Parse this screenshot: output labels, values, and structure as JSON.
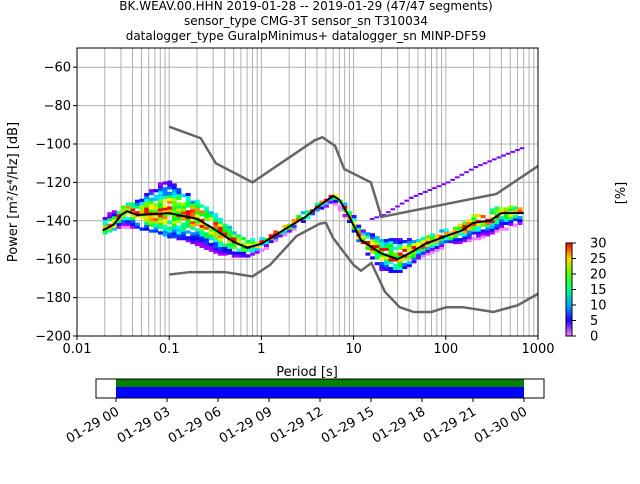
{
  "chart_data": {
    "type": "heatmap",
    "title_lines": [
      "BK.WEAV.00.HHN   2019-01-28 -- 2019-01-29  (47/47 segments)",
      "sensor_type CMG-3T sensor_sn T310034",
      "datalogger_type GuralpMinimus+ datalogger_sn MINP-DF59"
    ],
    "xlabel": "Period [s]",
    "ylabel": "Power [m²/s⁴/Hz] [dB]",
    "xscale": "log",
    "xlim": [
      0.01,
      1000
    ],
    "ylim": [
      -200,
      -50
    ],
    "x_ticks": [
      {
        "v": 0.01,
        "label": "0.01"
      },
      {
        "v": 0.1,
        "label": "0.1"
      },
      {
        "v": 1,
        "label": "1"
      },
      {
        "v": 10,
        "label": "10"
      },
      {
        "v": 100,
        "label": "100"
      },
      {
        "v": 1000,
        "label": "1000"
      }
    ],
    "y_ticks": [
      {
        "v": -60,
        "label": "−60"
      },
      {
        "v": -80,
        "label": "−80"
      },
      {
        "v": -100,
        "label": "−100"
      },
      {
        "v": -120,
        "label": "−120"
      },
      {
        "v": -140,
        "label": "−140"
      },
      {
        "v": -160,
        "label": "−160"
      },
      {
        "v": -180,
        "label": "−180"
      },
      {
        "v": -200,
        "label": "−200"
      }
    ],
    "grid": true,
    "noise_models": {
      "high": [
        [
          0.1,
          -91
        ],
        [
          0.22,
          -97
        ],
        [
          0.32,
          -110
        ],
        [
          0.8,
          -120
        ],
        [
          3.8,
          -98
        ],
        [
          4.6,
          -96.5
        ],
        [
          6.3,
          -101
        ],
        [
          7.9,
          -113
        ],
        [
          15.4,
          -120
        ],
        [
          20,
          -138
        ],
        [
          354,
          -126
        ],
        [
          1000,
          -111.5
        ]
      ],
      "low": [
        [
          0.1,
          -168
        ],
        [
          0.17,
          -166.7
        ],
        [
          0.4,
          -166.7
        ],
        [
          0.8,
          -169
        ],
        [
          1.24,
          -163
        ],
        [
          2.4,
          -148
        ],
        [
          4.3,
          -141.5
        ],
        [
          5,
          -141
        ],
        [
          6,
          -149
        ],
        [
          10,
          -163
        ],
        [
          12,
          -166
        ],
        [
          15.6,
          -162
        ],
        [
          21.9,
          -177
        ],
        [
          31.6,
          -185
        ],
        [
          45,
          -187.5
        ],
        [
          70,
          -187.5
        ],
        [
          101,
          -185
        ],
        [
          154,
          -185
        ],
        [
          328,
          -187.5
        ],
        [
          600,
          -184
        ],
        [
          1000,
          -178
        ]
      ]
    },
    "mean": [
      [
        0.019,
        -145
      ],
      [
        0.025,
        -142
      ],
      [
        0.03,
        -137
      ],
      [
        0.035,
        -135
      ],
      [
        0.045,
        -137
      ],
      [
        0.1,
        -136
      ],
      [
        0.2,
        -139
      ],
      [
        0.3,
        -144
      ],
      [
        0.5,
        -151
      ],
      [
        0.7,
        -154
      ],
      [
        1,
        -152
      ],
      [
        2,
        -143
      ],
      [
        3,
        -138
      ],
      [
        4,
        -133
      ],
      [
        6,
        -127
      ],
      [
        7,
        -129
      ],
      [
        9,
        -138
      ],
      [
        12,
        -150
      ],
      [
        20,
        -157
      ],
      [
        30,
        -160
      ],
      [
        40,
        -157
      ],
      [
        60,
        -152
      ],
      [
        100,
        -148
      ],
      [
        150,
        -145
      ],
      [
        200,
        -141
      ],
      [
        300,
        -140
      ],
      [
        400,
        -136
      ],
      [
        700,
        -136
      ]
    ],
    "pdf_band": [
      [
        0.019,
        -138,
        -147
      ],
      [
        0.03,
        -134,
        -143
      ],
      [
        0.05,
        -128,
        -144
      ],
      [
        0.08,
        -121,
        -146
      ],
      [
        0.1,
        -120,
        -148
      ],
      [
        0.15,
        -126,
        -150
      ],
      [
        0.2,
        -130,
        -152
      ],
      [
        0.3,
        -136,
        -156
      ],
      [
        0.5,
        -146,
        -159
      ],
      [
        0.7,
        -150,
        -159
      ],
      [
        1,
        -150,
        -156
      ],
      [
        2,
        -142,
        -146
      ],
      [
        4,
        -131,
        -135
      ],
      [
        6,
        -126,
        -130
      ],
      [
        9,
        -134,
        -141
      ],
      [
        12,
        -145,
        -153
      ],
      [
        20,
        -150,
        -165
      ],
      [
        30,
        -150,
        -167
      ],
      [
        50,
        -150,
        -160
      ],
      [
        100,
        -145,
        -153
      ],
      [
        200,
        -138,
        -150
      ],
      [
        400,
        -133,
        -145
      ],
      [
        700,
        -133,
        -141
      ]
    ],
    "outlier": [
      [
        15,
        -139
      ],
      [
        20,
        -137
      ],
      [
        40,
        -128
      ],
      [
        100,
        -120
      ],
      [
        200,
        -112
      ],
      [
        400,
        -106
      ],
      [
        650,
        -102
      ]
    ],
    "colorbar": {
      "label": "[%]",
      "min": 0,
      "max": 30,
      "ticks": [
        "0",
        "5",
        "10",
        "15",
        "20",
        "25",
        "30"
      ]
    },
    "timeline": {
      "tick_labels": [
        "01-29 00",
        "01-29 03",
        "01-29 06",
        "01-29 09",
        "01-29 12",
        "01-29 15",
        "01-29 18",
        "01-29 21",
        "01-30 00"
      ],
      "coverage_color": "#008000",
      "data_color": "#0000ff"
    }
  }
}
